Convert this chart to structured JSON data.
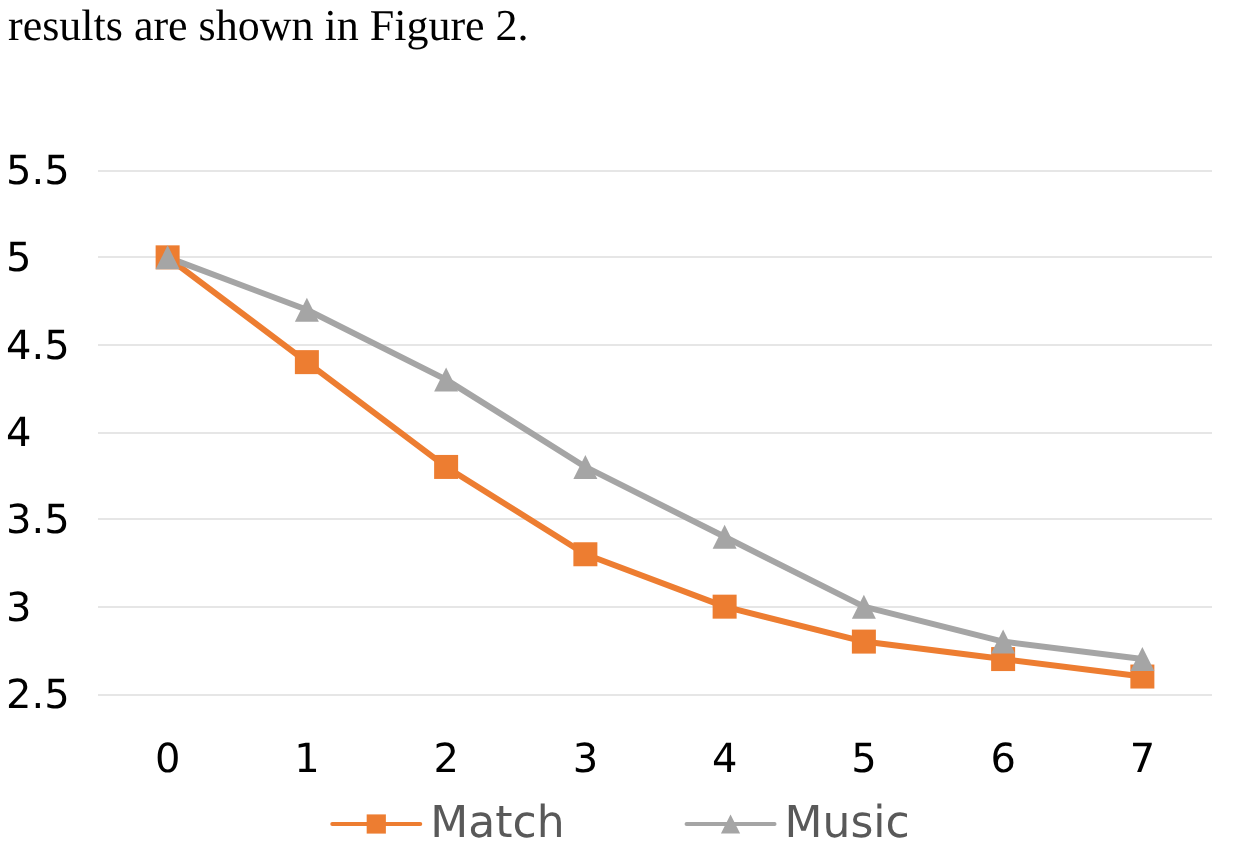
{
  "chart_data": {
    "type": "line",
    "annotations": [
      "results are shown in Figure 2."
    ],
    "categories": [
      "0",
      "1",
      "2",
      "3",
      "4",
      "5",
      "6",
      "7"
    ],
    "series": [
      {
        "name": "Match",
        "color": "#ed7d31",
        "marker": "square",
        "values": [
          5,
          4.4,
          3.8,
          3.3,
          3.0,
          2.8,
          2.7,
          2.6
        ]
      },
      {
        "name": "Music",
        "color": "#a5a5a5",
        "marker": "triangle",
        "values": [
          5,
          4.7,
          4.3,
          3.8,
          3.4,
          3.0,
          2.8,
          2.7
        ]
      }
    ],
    "ylim": [
      2.5,
      5.5
    ],
    "yticks": [
      2.5,
      3,
      3.5,
      4,
      4.5,
      5,
      5.5
    ],
    "grid": "y",
    "legend": "bottom",
    "line_style": "solid"
  }
}
